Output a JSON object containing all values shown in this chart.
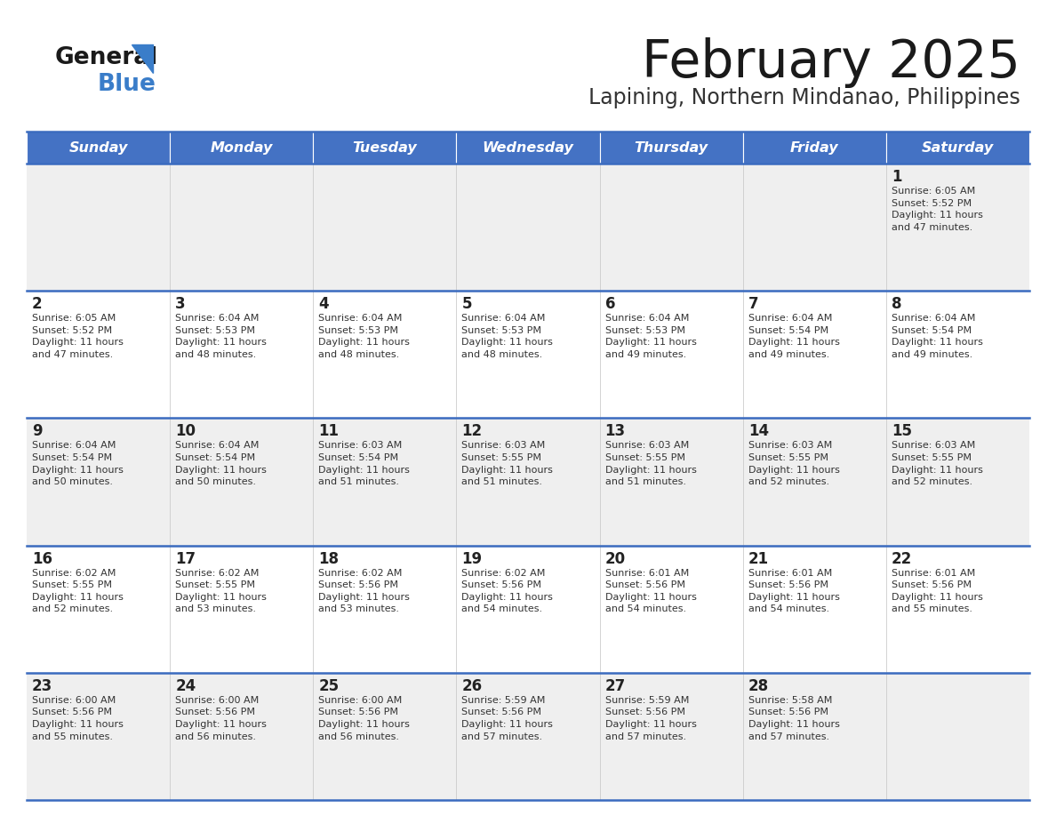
{
  "title": "February 2025",
  "subtitle": "Lapining, Northern Mindanao, Philippines",
  "header_bg": "#4472C4",
  "header_text_color": "#FFFFFF",
  "days_of_week": [
    "Sunday",
    "Monday",
    "Tuesday",
    "Wednesday",
    "Thursday",
    "Friday",
    "Saturday"
  ],
  "row_bg_even": "#EFEFEF",
  "row_bg_odd": "#FFFFFF",
  "separator_color": "#3A6BBF",
  "day_number_color": "#222222",
  "info_text_color": "#333333",
  "calendar": [
    [
      {
        "day": null,
        "info": null
      },
      {
        "day": null,
        "info": null
      },
      {
        "day": null,
        "info": null
      },
      {
        "day": null,
        "info": null
      },
      {
        "day": null,
        "info": null
      },
      {
        "day": null,
        "info": null
      },
      {
        "day": 1,
        "info": "Sunrise: 6:05 AM\nSunset: 5:52 PM\nDaylight: 11 hours\nand 47 minutes."
      }
    ],
    [
      {
        "day": 2,
        "info": "Sunrise: 6:05 AM\nSunset: 5:52 PM\nDaylight: 11 hours\nand 47 minutes."
      },
      {
        "day": 3,
        "info": "Sunrise: 6:04 AM\nSunset: 5:53 PM\nDaylight: 11 hours\nand 48 minutes."
      },
      {
        "day": 4,
        "info": "Sunrise: 6:04 AM\nSunset: 5:53 PM\nDaylight: 11 hours\nand 48 minutes."
      },
      {
        "day": 5,
        "info": "Sunrise: 6:04 AM\nSunset: 5:53 PM\nDaylight: 11 hours\nand 48 minutes."
      },
      {
        "day": 6,
        "info": "Sunrise: 6:04 AM\nSunset: 5:53 PM\nDaylight: 11 hours\nand 49 minutes."
      },
      {
        "day": 7,
        "info": "Sunrise: 6:04 AM\nSunset: 5:54 PM\nDaylight: 11 hours\nand 49 minutes."
      },
      {
        "day": 8,
        "info": "Sunrise: 6:04 AM\nSunset: 5:54 PM\nDaylight: 11 hours\nand 49 minutes."
      }
    ],
    [
      {
        "day": 9,
        "info": "Sunrise: 6:04 AM\nSunset: 5:54 PM\nDaylight: 11 hours\nand 50 minutes."
      },
      {
        "day": 10,
        "info": "Sunrise: 6:04 AM\nSunset: 5:54 PM\nDaylight: 11 hours\nand 50 minutes."
      },
      {
        "day": 11,
        "info": "Sunrise: 6:03 AM\nSunset: 5:54 PM\nDaylight: 11 hours\nand 51 minutes."
      },
      {
        "day": 12,
        "info": "Sunrise: 6:03 AM\nSunset: 5:55 PM\nDaylight: 11 hours\nand 51 minutes."
      },
      {
        "day": 13,
        "info": "Sunrise: 6:03 AM\nSunset: 5:55 PM\nDaylight: 11 hours\nand 51 minutes."
      },
      {
        "day": 14,
        "info": "Sunrise: 6:03 AM\nSunset: 5:55 PM\nDaylight: 11 hours\nand 52 minutes."
      },
      {
        "day": 15,
        "info": "Sunrise: 6:03 AM\nSunset: 5:55 PM\nDaylight: 11 hours\nand 52 minutes."
      }
    ],
    [
      {
        "day": 16,
        "info": "Sunrise: 6:02 AM\nSunset: 5:55 PM\nDaylight: 11 hours\nand 52 minutes."
      },
      {
        "day": 17,
        "info": "Sunrise: 6:02 AM\nSunset: 5:55 PM\nDaylight: 11 hours\nand 53 minutes."
      },
      {
        "day": 18,
        "info": "Sunrise: 6:02 AM\nSunset: 5:56 PM\nDaylight: 11 hours\nand 53 minutes."
      },
      {
        "day": 19,
        "info": "Sunrise: 6:02 AM\nSunset: 5:56 PM\nDaylight: 11 hours\nand 54 minutes."
      },
      {
        "day": 20,
        "info": "Sunrise: 6:01 AM\nSunset: 5:56 PM\nDaylight: 11 hours\nand 54 minutes."
      },
      {
        "day": 21,
        "info": "Sunrise: 6:01 AM\nSunset: 5:56 PM\nDaylight: 11 hours\nand 54 minutes."
      },
      {
        "day": 22,
        "info": "Sunrise: 6:01 AM\nSunset: 5:56 PM\nDaylight: 11 hours\nand 55 minutes."
      }
    ],
    [
      {
        "day": 23,
        "info": "Sunrise: 6:00 AM\nSunset: 5:56 PM\nDaylight: 11 hours\nand 55 minutes."
      },
      {
        "day": 24,
        "info": "Sunrise: 6:00 AM\nSunset: 5:56 PM\nDaylight: 11 hours\nand 56 minutes."
      },
      {
        "day": 25,
        "info": "Sunrise: 6:00 AM\nSunset: 5:56 PM\nDaylight: 11 hours\nand 56 minutes."
      },
      {
        "day": 26,
        "info": "Sunrise: 5:59 AM\nSunset: 5:56 PM\nDaylight: 11 hours\nand 57 minutes."
      },
      {
        "day": 27,
        "info": "Sunrise: 5:59 AM\nSunset: 5:56 PM\nDaylight: 11 hours\nand 57 minutes."
      },
      {
        "day": 28,
        "info": "Sunrise: 5:58 AM\nSunset: 5:56 PM\nDaylight: 11 hours\nand 57 minutes."
      },
      {
        "day": null,
        "info": null
      }
    ]
  ]
}
